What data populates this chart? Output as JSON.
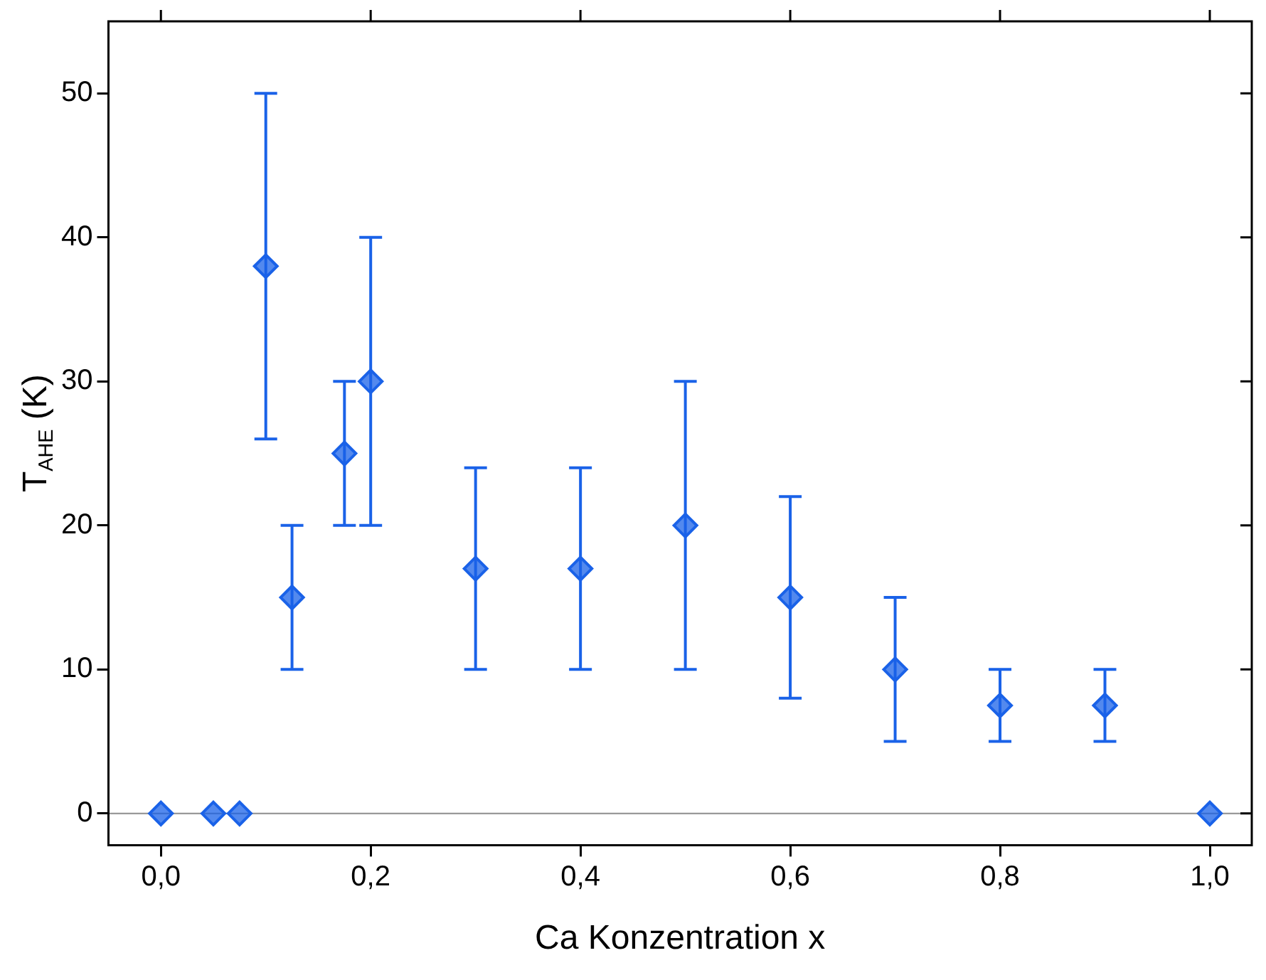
{
  "chart_data": {
    "type": "scatter",
    "xlabel": "Ca Konzentration x",
    "ylabel": "T$_{AHE}$ (K)",
    "x": [
      0,
      0.05,
      0.075,
      0.1,
      0.125,
      0.175,
      0.2,
      0.3,
      0.4,
      0.5,
      0.6,
      0.7,
      0.8,
      0.9,
      1.0
    ],
    "series": [
      {
        "color": "#1a62e8",
        "values": [
          0,
          0,
          0,
          38,
          15,
          25,
          30,
          17,
          17,
          20,
          15,
          10,
          7.5,
          7.5,
          0
        ],
        "errors": [
          null,
          null,
          null,
          [
            26,
            50
          ],
          [
            10,
            20
          ],
          [
            20,
            30
          ],
          [
            20,
            40
          ],
          [
            10,
            24
          ],
          [
            10,
            24
          ],
          [
            10,
            30
          ],
          [
            8,
            22
          ],
          [
            5,
            15
          ],
          [
            5,
            10
          ],
          [
            5,
            10
          ],
          null
        ]
      }
    ],
    "marker": "diamond",
    "xlim": [
      -0.05,
      1.04
    ],
    "ylim": [
      -2.2,
      55
    ],
    "xticks": [
      {
        "value": 0,
        "label": "0,0"
      },
      {
        "value": 0.2,
        "label": "0,2"
      },
      {
        "value": 0.4,
        "label": "0,4"
      },
      {
        "value": 0.6,
        "label": "0,6"
      },
      {
        "value": 0.8,
        "label": "0,8"
      },
      {
        "value": 1,
        "label": "1,0"
      }
    ],
    "yticks": [
      0,
      10,
      20,
      30,
      40,
      50
    ],
    "ref_lines": [
      {
        "axis": "y",
        "value": 0,
        "color": "#999999"
      }
    ]
  }
}
